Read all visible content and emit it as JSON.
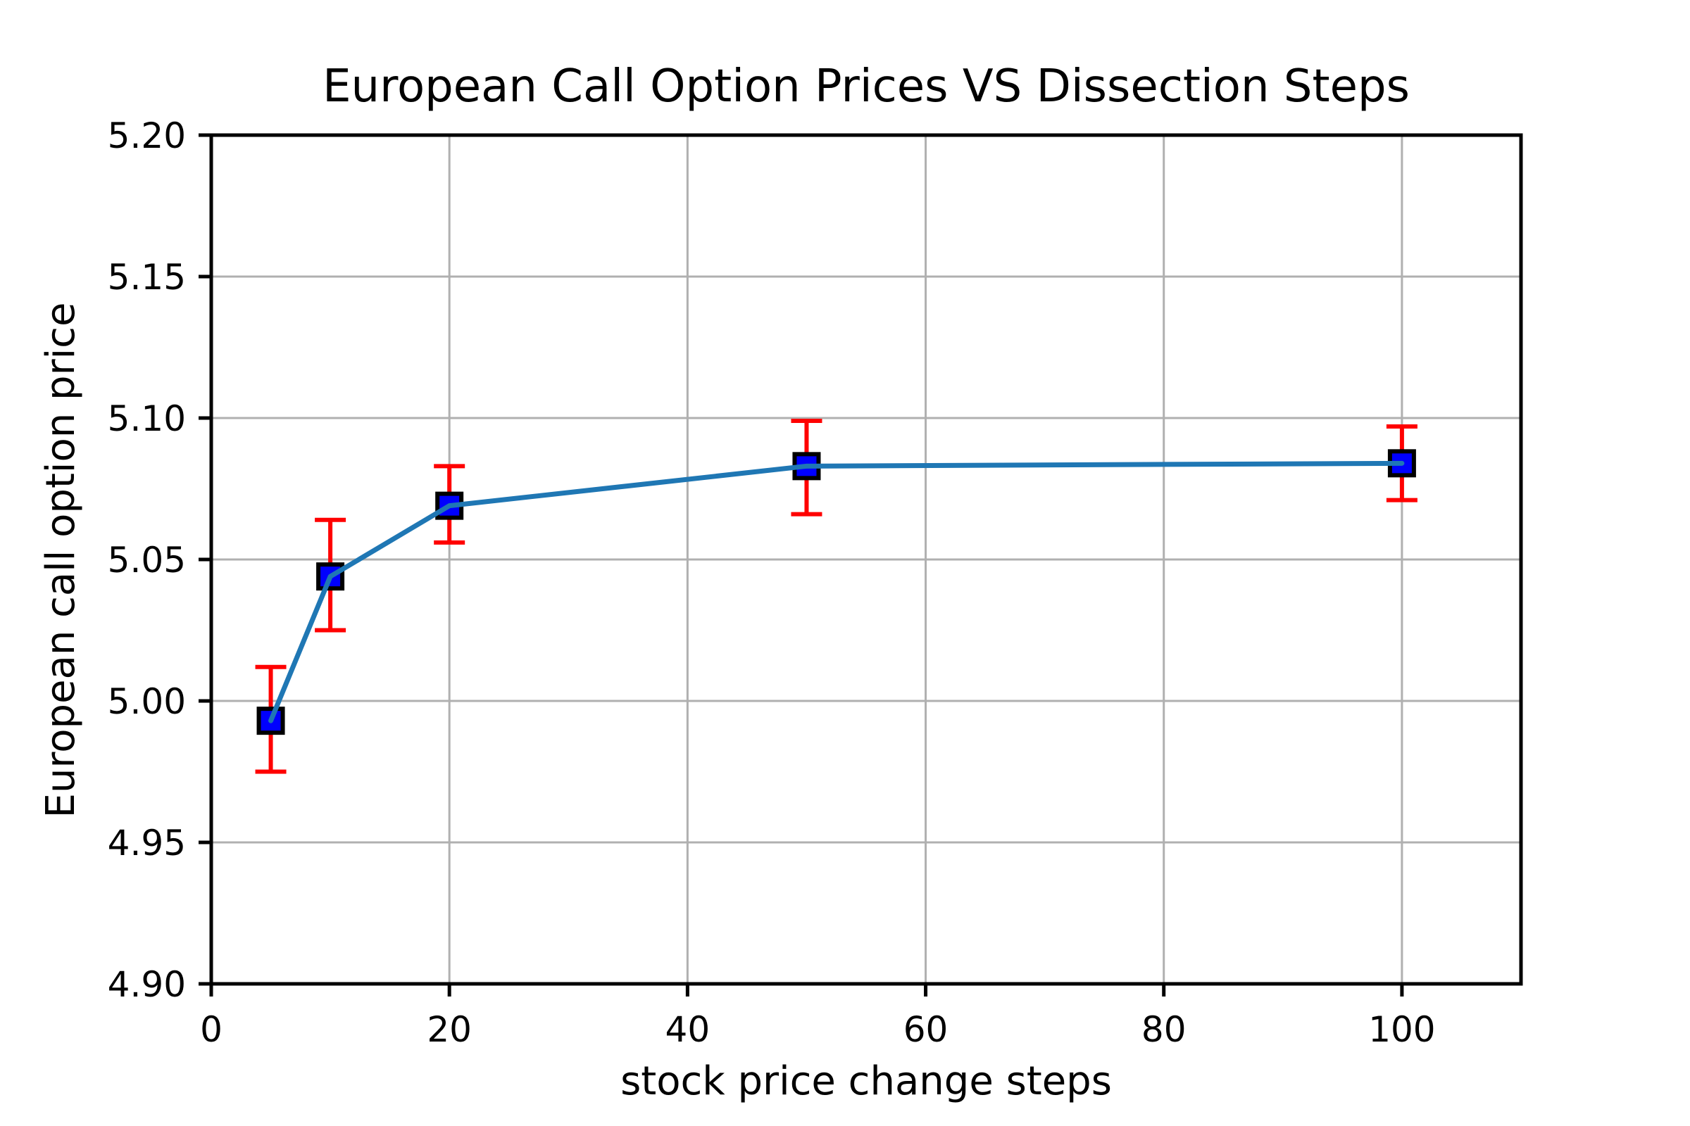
{
  "chart_data": {
    "type": "line",
    "title": "European Call Option Prices VS Dissection Steps",
    "xlabel": "stock price change steps",
    "ylabel": "European call option price",
    "x": [
      5,
      10,
      20,
      50,
      100
    ],
    "y": [
      4.993,
      5.044,
      5.069,
      5.083,
      5.084
    ],
    "yerr_upper": [
      5.012,
      5.064,
      5.083,
      5.099,
      5.097
    ],
    "yerr_lower": [
      4.975,
      5.025,
      5.056,
      5.066,
      5.071
    ],
    "xlim": [
      0,
      110
    ],
    "ylim": [
      4.9,
      5.2
    ],
    "xticks": [
      0,
      20,
      40,
      60,
      80,
      100
    ],
    "xtick_labels": [
      "0",
      "20",
      "40",
      "60",
      "80",
      "100"
    ],
    "yticks": [
      4.9,
      4.95,
      5.0,
      5.05,
      5.1,
      5.15,
      5.2
    ],
    "ytick_labels": [
      "4.90",
      "4.95",
      "5.00",
      "5.05",
      "5.10",
      "5.15",
      "5.20"
    ],
    "grid": true,
    "legend": "none",
    "colors": {
      "line": "#1f77b4",
      "marker_fill": "#0000ff",
      "marker_edge": "#000000",
      "error_bar": "#ff0000",
      "grid": "#b0b0b0",
      "axis": "#000000",
      "background": "#ffffff"
    }
  }
}
